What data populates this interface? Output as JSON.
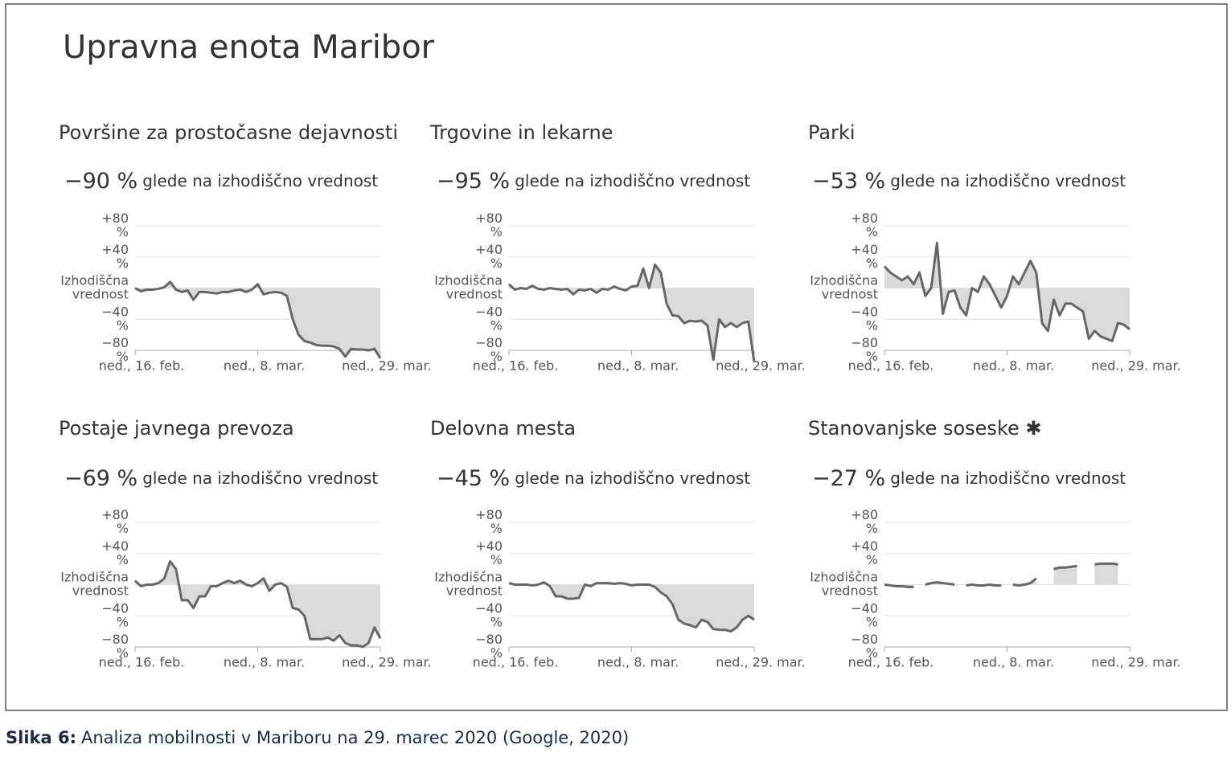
{
  "page": {
    "title": "Upravna enota Maribor",
    "caption_label": "Slika 6:",
    "caption": "Analiza mobilnosti v Mariboru na 29. marec 2020 (Google, 2020)"
  },
  "chart_data": [
    {
      "type": "line",
      "title": "Površine za prostočasne dejavnosti",
      "summary": "−90 %",
      "summary_text": "glede na izhodiščno vrednost",
      "x": [
        0,
        1,
        2,
        3,
        4,
        5,
        6,
        7,
        8,
        9,
        10,
        11,
        12,
        13,
        14,
        15,
        16,
        17,
        18,
        19,
        20,
        21,
        22,
        23,
        24,
        25,
        26,
        27,
        28,
        29,
        30,
        31,
        32,
        33,
        34,
        35,
        36,
        37,
        38,
        39,
        40,
        41,
        42
      ],
      "values": [
        0,
        -4,
        -2,
        -2,
        -1,
        1,
        8,
        -2,
        -5,
        -3,
        -15,
        -5,
        -5,
        -6,
        -7,
        -5,
        -5,
        -3,
        -2,
        -5,
        -2,
        5,
        -8,
        -6,
        -5,
        -6,
        -10,
        -40,
        -60,
        -68,
        -70,
        -73,
        -74,
        -74,
        -75,
        -78,
        -88,
        -78,
        -79,
        -79,
        -80,
        -78,
        -90
      ],
      "color": "#666666",
      "fill": "#dadada",
      "xlim": [
        0,
        42
      ],
      "xticks": [
        {
          "value": 0,
          "label": "ned., 16. feb."
        },
        {
          "value": 21,
          "label": "ned., 8. mar."
        },
        {
          "value": 42,
          "label": "ned., 29. mar."
        }
      ],
      "ylim": [
        -80,
        80
      ],
      "yticks": [
        {
          "value": 80,
          "label": "+80 %"
        },
        {
          "value": 40,
          "label": "+40 %"
        },
        {
          "value": 0,
          "label": "Izhodiščna vrednost"
        },
        {
          "value": -40,
          "label": "−40 %"
        },
        {
          "value": -80,
          "label": "−80 %"
        }
      ],
      "grid": true
    },
    {
      "type": "line",
      "title": "Trgovine in lekarne",
      "summary": "−95 %",
      "summary_text": "glede na izhodiščno vrednost",
      "x": [
        0,
        1,
        2,
        3,
        4,
        5,
        6,
        7,
        8,
        9,
        10,
        11,
        12,
        13,
        14,
        15,
        16,
        17,
        18,
        19,
        20,
        21,
        22,
        23,
        24,
        25,
        26,
        27,
        28,
        29,
        30,
        31,
        32,
        33,
        34,
        35,
        36,
        37,
        38,
        39,
        40,
        41,
        42
      ],
      "values": [
        5,
        -2,
        0,
        -1,
        3,
        -1,
        -2,
        0,
        -1,
        -2,
        -1,
        -8,
        -2,
        -3,
        -1,
        -6,
        -1,
        -2,
        2,
        -1,
        -3,
        2,
        3,
        25,
        0,
        30,
        20,
        -20,
        -35,
        -36,
        -45,
        -42,
        -43,
        -42,
        -48,
        -92,
        -40,
        -50,
        -45,
        -50,
        -45,
        -43,
        -95
      ],
      "color": "#666666",
      "fill": "#dadada",
      "xlim": [
        0,
        42
      ],
      "xticks": [
        {
          "value": 0,
          "label": "ned., 16. feb."
        },
        {
          "value": 21,
          "label": "ned., 8. mar."
        },
        {
          "value": 42,
          "label": "ned., 29. mar."
        }
      ],
      "ylim": [
        -80,
        80
      ],
      "yticks": [
        {
          "value": 80,
          "label": "+80 %"
        },
        {
          "value": 40,
          "label": "+40 %"
        },
        {
          "value": 0,
          "label": "Izhodiščna vrednost"
        },
        {
          "value": -40,
          "label": "−40 %"
        },
        {
          "value": -80,
          "label": "−80 %"
        }
      ],
      "grid": true
    },
    {
      "type": "line",
      "title": "Parki",
      "summary": "−53 %",
      "summary_text": "glede na izhodiščno vrednost",
      "x": [
        0,
        1,
        2,
        3,
        4,
        5,
        6,
        7,
        8,
        9,
        10,
        11,
        12,
        13,
        14,
        15,
        16,
        17,
        18,
        19,
        20,
        21,
        22,
        23,
        24,
        25,
        26,
        27,
        28,
        29,
        30,
        31,
        32,
        33,
        34,
        35,
        36,
        37,
        38,
        39,
        40,
        41,
        42
      ],
      "values": [
        28,
        20,
        15,
        10,
        15,
        5,
        20,
        -10,
        0,
        58,
        -33,
        -5,
        -3,
        -25,
        -35,
        0,
        -5,
        15,
        5,
        -10,
        -25,
        -10,
        15,
        5,
        20,
        35,
        20,
        -45,
        -55,
        -15,
        -35,
        -20,
        -20,
        -25,
        -30,
        -65,
        -55,
        -62,
        -65,
        -68,
        -45,
        -47,
        -53
      ],
      "color": "#666666",
      "fill": "#dadada",
      "xlim": [
        0,
        42
      ],
      "xticks": [
        {
          "value": 0,
          "label": "ned., 16. feb."
        },
        {
          "value": 21,
          "label": "ned., 8. mar."
        },
        {
          "value": 42,
          "label": "ned., 29. mar."
        }
      ],
      "ylim": [
        -80,
        80
      ],
      "yticks": [
        {
          "value": 80,
          "label": "+80 %"
        },
        {
          "value": 40,
          "label": "+40 %"
        },
        {
          "value": 0,
          "label": "Izhodiščna vrednost"
        },
        {
          "value": -40,
          "label": "−40 %"
        },
        {
          "value": -80,
          "label": "−80 %"
        }
      ],
      "grid": true
    },
    {
      "type": "line",
      "title": "Postaje javnega prevoza",
      "summary": "−69 %",
      "summary_text": "glede na izhodiščno vrednost",
      "x": [
        0,
        1,
        2,
        3,
        4,
        5,
        6,
        7,
        8,
        9,
        10,
        11,
        12,
        13,
        14,
        15,
        16,
        17,
        18,
        19,
        20,
        21,
        22,
        23,
        24,
        25,
        26,
        27,
        28,
        29,
        30,
        31,
        32,
        33,
        34,
        35,
        36,
        37,
        38,
        39,
        40,
        41,
        42
      ],
      "values": [
        5,
        -2,
        0,
        0,
        2,
        8,
        30,
        20,
        -20,
        -20,
        -30,
        -15,
        -15,
        -2,
        -2,
        2,
        5,
        2,
        5,
        0,
        -2,
        2,
        8,
        -8,
        0,
        2,
        -3,
        -30,
        -32,
        -40,
        -70,
        -70,
        -70,
        -68,
        -72,
        -65,
        -75,
        -78,
        -78,
        -80,
        -75,
        -55,
        -69
      ],
      "color": "#666666",
      "fill": "#dadada",
      "xlim": [
        0,
        42
      ],
      "xticks": [
        {
          "value": 0,
          "label": "ned., 16. feb."
        },
        {
          "value": 21,
          "label": "ned., 8. mar."
        },
        {
          "value": 42,
          "label": "ned., 29. mar."
        }
      ],
      "ylim": [
        -80,
        80
      ],
      "yticks": [
        {
          "value": 80,
          "label": "+80 %"
        },
        {
          "value": 40,
          "label": "+40 %"
        },
        {
          "value": 0,
          "label": "Izhodiščna vrednost"
        },
        {
          "value": -40,
          "label": "−40 %"
        },
        {
          "value": -80,
          "label": "−80 %"
        }
      ],
      "grid": true
    },
    {
      "type": "line",
      "title": "Delovna mesta",
      "summary": "−45 %",
      "summary_text": "glede na izhodiščno vrednost",
      "x": [
        0,
        1,
        2,
        3,
        4,
        5,
        6,
        7,
        8,
        9,
        10,
        11,
        12,
        13,
        14,
        15,
        16,
        17,
        18,
        19,
        20,
        21,
        22,
        23,
        24,
        25,
        26,
        27,
        28,
        29,
        30,
        31,
        32,
        33,
        34,
        35,
        36,
        37,
        38,
        39,
        40,
        41,
        42
      ],
      "values": [
        2,
        0,
        0,
        0,
        -1,
        0,
        3,
        -2,
        -15,
        -15,
        -18,
        -18,
        -17,
        0,
        -2,
        2,
        2,
        2,
        1,
        2,
        1,
        -1,
        0,
        0,
        0,
        -3,
        -10,
        -15,
        -25,
        -45,
        -50,
        -52,
        -55,
        -45,
        -48,
        -57,
        -58,
        -58,
        -60,
        -55,
        -45,
        -40,
        -45
      ],
      "color": "#666666",
      "fill": "#dadada",
      "xlim": [
        0,
        42
      ],
      "xticks": [
        {
          "value": 0,
          "label": "ned., 16. feb."
        },
        {
          "value": 21,
          "label": "ned., 8. mar."
        },
        {
          "value": 42,
          "label": "ned., 29. mar."
        }
      ],
      "ylim": [
        -80,
        80
      ],
      "yticks": [
        {
          "value": 80,
          "label": "+80 %"
        },
        {
          "value": 40,
          "label": "+40 %"
        },
        {
          "value": 0,
          "label": "Izhodiščna vrednost"
        },
        {
          "value": -40,
          "label": "−40 %"
        },
        {
          "value": -80,
          "label": "−80 %"
        }
      ],
      "grid": true
    },
    {
      "type": "line",
      "title": "Stanovanjske soseske ✱",
      "summary": "−27 %",
      "summary_text": "glede na izhodiščno vrednost",
      "x": [
        0,
        1,
        2,
        3,
        4,
        5,
        6,
        7,
        8,
        9,
        10,
        11,
        12,
        13,
        14,
        15,
        16,
        17,
        18,
        19,
        20,
        21,
        22,
        23,
        24,
        25,
        26,
        27,
        28,
        29,
        30,
        31,
        32,
        33,
        34,
        35,
        36,
        37,
        38,
        39,
        40,
        41,
        42
      ],
      "values": [
        0,
        -1,
        -2,
        -2,
        -3,
        -3,
        null,
        0,
        2,
        3,
        2,
        1,
        0,
        null,
        -1,
        0,
        -1,
        -1,
        0,
        -1,
        -1,
        null,
        0,
        -1,
        0,
        2,
        8,
        null,
        null,
        20,
        22,
        22,
        23,
        24,
        null,
        null,
        26,
        27,
        27,
        27,
        26,
        null,
        null
      ],
      "color": "#666666",
      "fill": "#dadada",
      "xlim": [
        0,
        42
      ],
      "xticks": [
        {
          "value": 0,
          "label": "ned., 16. feb."
        },
        {
          "value": 21,
          "label": "ned., 8. mar."
        },
        {
          "value": 42,
          "label": "ned., 29. mar."
        }
      ],
      "ylim": [
        -80,
        80
      ],
      "yticks": [
        {
          "value": 80,
          "label": "+80 %"
        },
        {
          "value": 40,
          "label": "+40 %"
        },
        {
          "value": 0,
          "label": "Izhodiščna vrednost"
        },
        {
          "value": -40,
          "label": "−40 %"
        },
        {
          "value": -80,
          "label": "−80 %"
        }
      ],
      "grid": true
    }
  ]
}
